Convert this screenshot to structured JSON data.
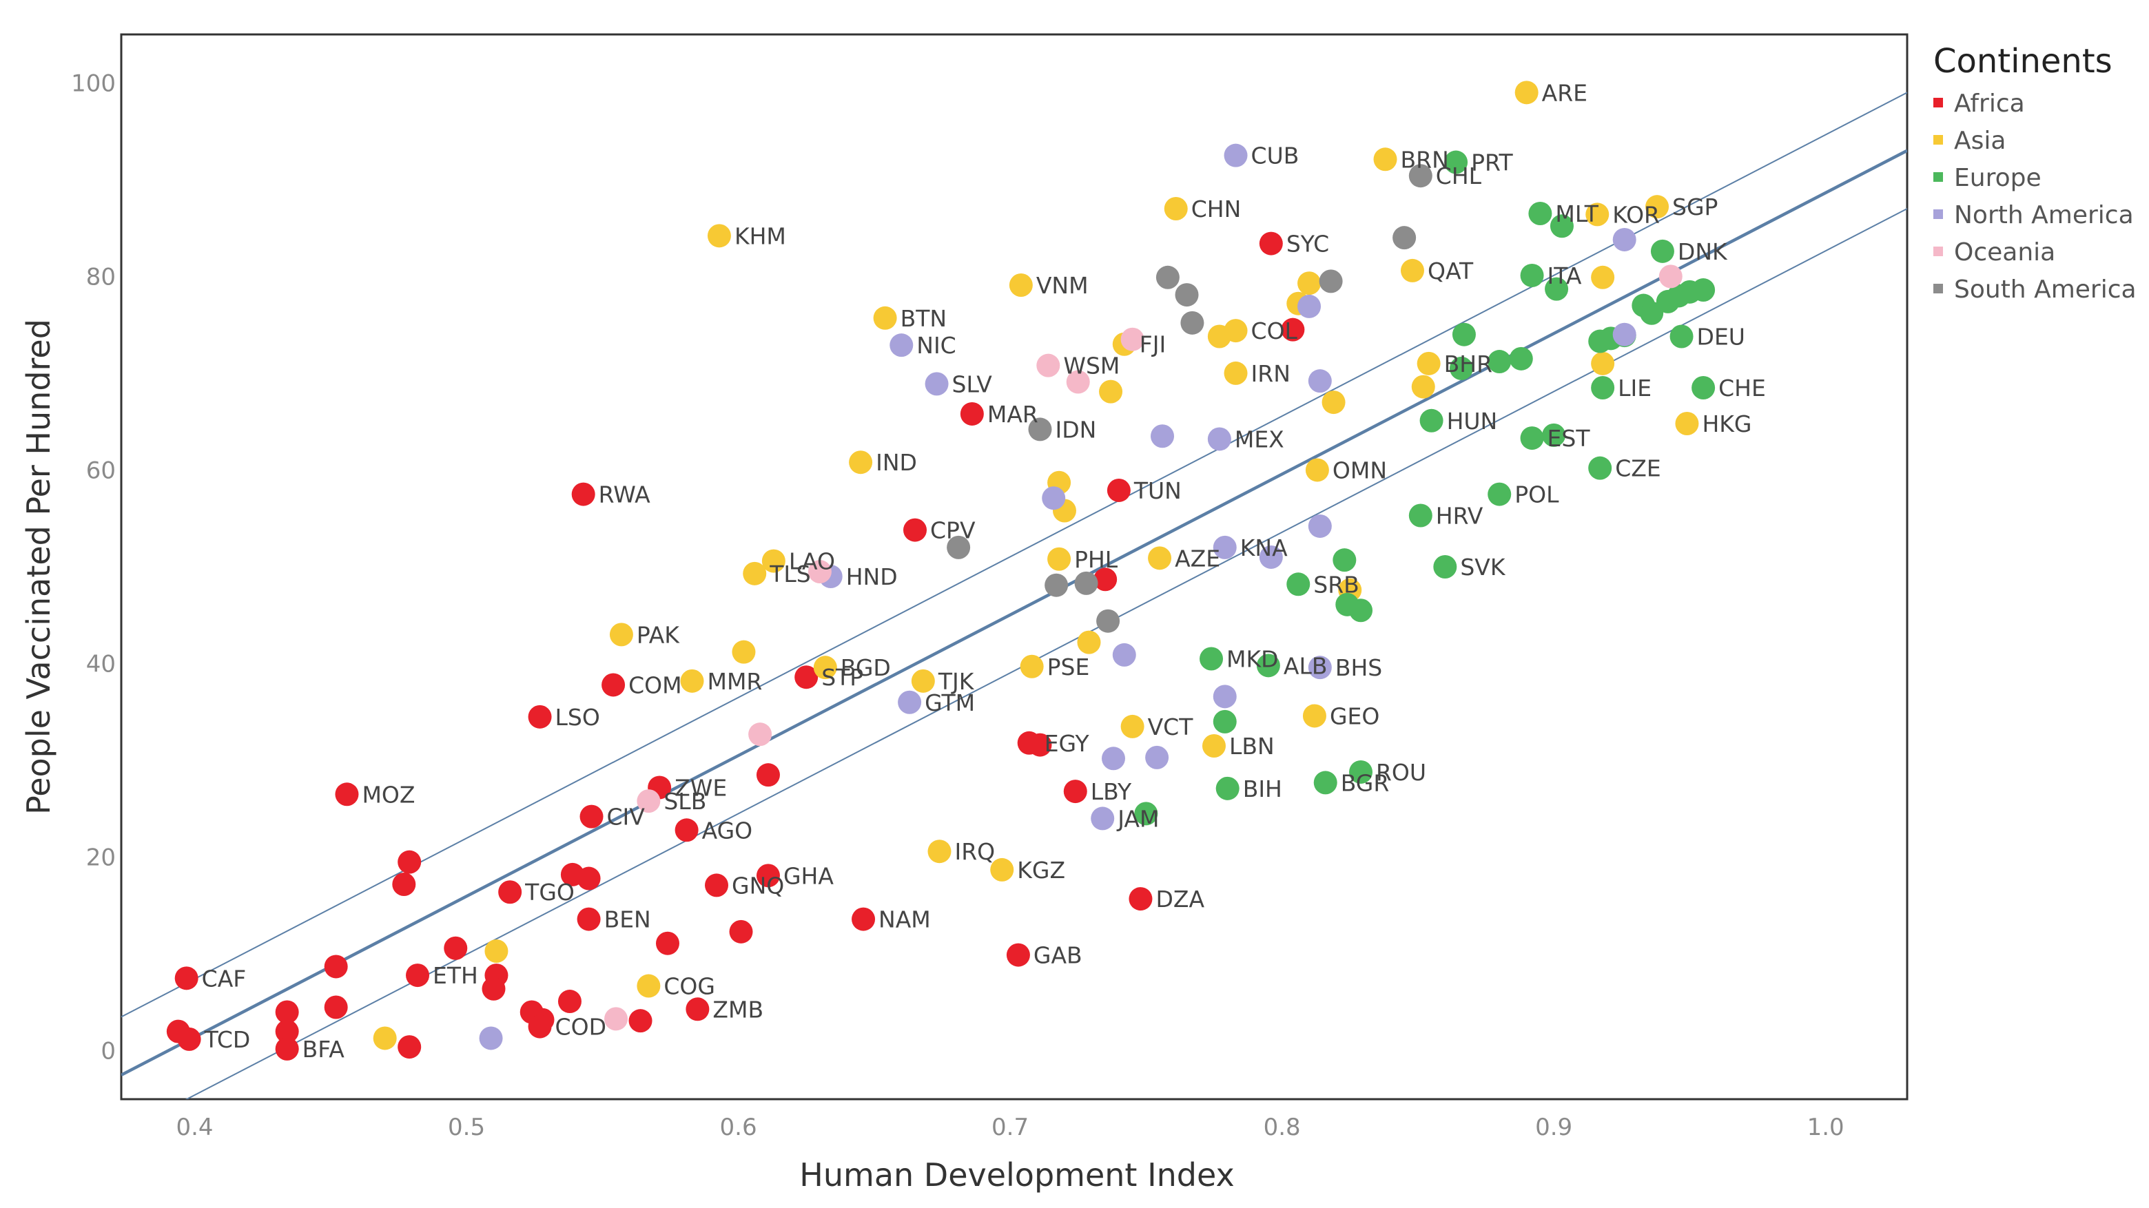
{
  "chart_data": {
    "type": "scatter",
    "title": "",
    "xlabel": "Human Development Index",
    "ylabel": "People Vaccinated Per Hundred",
    "xlim": [
      0.373,
      1.03
    ],
    "ylim": [
      -5,
      105
    ],
    "x_ticks": [
      "0.4",
      "0.5",
      "0.6",
      "0.7",
      "0.8",
      "0.9",
      "1.0"
    ],
    "x_tick_values": [
      0.4,
      0.5,
      0.6,
      0.7,
      0.8,
      0.9,
      1.0
    ],
    "y_ticks": [
      "0",
      "20",
      "40",
      "60",
      "80",
      "100"
    ],
    "y_tick_values": [
      0,
      20,
      40,
      60,
      80,
      100
    ],
    "grid": false,
    "legend": {
      "title": "Continents",
      "placement": "right",
      "entries": [
        {
          "name": "Africa",
          "color": "#e8202a"
        },
        {
          "name": "Asia",
          "color": "#f7c934"
        },
        {
          "name": "Europe",
          "color": "#4cb85c"
        },
        {
          "name": "North America",
          "color": "#a7a2da"
        },
        {
          "name": "Oceania",
          "color": "#f5b8c8"
        },
        {
          "name": "South America",
          "color": "#8c8c8c"
        }
      ]
    },
    "trend": {
      "color": "#5b7fa6",
      "line": [
        [
          0.373,
          -2.5
        ],
        [
          1.03,
          93.0
        ]
      ],
      "upper": [
        [
          0.373,
          3.5
        ],
        [
          1.03,
          99.0
        ]
      ],
      "lower": [
        [
          0.373,
          -8.5
        ],
        [
          1.03,
          87.0
        ]
      ]
    },
    "series": [
      {
        "name": "Africa",
        "color": "#e8202a",
        "points": [
          {
            "x": 0.397,
            "y": 7.5,
            "label": "CAF"
          },
          {
            "x": 0.394,
            "y": 2.0,
            "label": ""
          },
          {
            "x": 0.398,
            "y": 1.2,
            "label": "TCD"
          },
          {
            "x": 0.434,
            "y": 4.0,
            "label": ""
          },
          {
            "x": 0.434,
            "y": 2.0,
            "label": ""
          },
          {
            "x": 0.434,
            "y": 0.2,
            "label": "BFA"
          },
          {
            "x": 0.452,
            "y": 8.7,
            "label": ""
          },
          {
            "x": 0.452,
            "y": 4.5,
            "label": ""
          },
          {
            "x": 0.456,
            "y": 26.5,
            "label": "MOZ"
          },
          {
            "x": 0.479,
            "y": 19.5,
            "label": ""
          },
          {
            "x": 0.477,
            "y": 17.2,
            "label": ""
          },
          {
            "x": 0.482,
            "y": 7.8,
            "label": "ETH"
          },
          {
            "x": 0.479,
            "y": 0.4,
            "label": ""
          },
          {
            "x": 0.496,
            "y": 10.6,
            "label": ""
          },
          {
            "x": 0.511,
            "y": 7.8,
            "label": ""
          },
          {
            "x": 0.51,
            "y": 6.4,
            "label": ""
          },
          {
            "x": 0.516,
            "y": 16.4,
            "label": "TGO"
          },
          {
            "x": 0.524,
            "y": 4.0,
            "label": ""
          },
          {
            "x": 0.528,
            "y": 3.2,
            "label": ""
          },
          {
            "x": 0.527,
            "y": 2.5,
            "label": "COD"
          },
          {
            "x": 0.527,
            "y": 34.5,
            "label": "LSO"
          },
          {
            "x": 0.539,
            "y": 18.2,
            "label": ""
          },
          {
            "x": 0.545,
            "y": 17.8,
            "label": ""
          },
          {
            "x": 0.543,
            "y": 57.5,
            "label": "RWA"
          },
          {
            "x": 0.546,
            "y": 24.2,
            "label": "CIV"
          },
          {
            "x": 0.545,
            "y": 13.6,
            "label": "BEN"
          },
          {
            "x": 0.538,
            "y": 5.1,
            "label": ""
          },
          {
            "x": 0.554,
            "y": 37.8,
            "label": "COM"
          },
          {
            "x": 0.564,
            "y": 3.1,
            "label": ""
          },
          {
            "x": 0.571,
            "y": 27.2,
            "label": "ZWE"
          },
          {
            "x": 0.574,
            "y": 11.1,
            "label": ""
          },
          {
            "x": 0.581,
            "y": 22.8,
            "label": "AGO"
          },
          {
            "x": 0.585,
            "y": 4.3,
            "label": "ZMB"
          },
          {
            "x": 0.592,
            "y": 17.1,
            "label": "GNQ"
          },
          {
            "x": 0.601,
            "y": 12.3,
            "label": ""
          },
          {
            "x": 0.611,
            "y": 28.5,
            "label": ""
          },
          {
            "x": 0.611,
            "y": 18.1,
            "label": "GHA"
          },
          {
            "x": 0.625,
            "y": 38.6,
            "label": "STP"
          },
          {
            "x": 0.646,
            "y": 13.6,
            "label": "NAM"
          },
          {
            "x": 0.665,
            "y": 53.8,
            "label": "CPV"
          },
          {
            "x": 0.686,
            "y": 65.8,
            "label": "MAR"
          },
          {
            "x": 0.703,
            "y": 9.9,
            "label": "GAB"
          },
          {
            "x": 0.707,
            "y": 31.8,
            "label": "EGY"
          },
          {
            "x": 0.711,
            "y": 31.6,
            "label": ""
          },
          {
            "x": 0.724,
            "y": 26.8,
            "label": "LBY"
          },
          {
            "x": 0.74,
            "y": 57.9,
            "label": "TUN"
          },
          {
            "x": 0.735,
            "y": 48.7,
            "label": ""
          },
          {
            "x": 0.748,
            "y": 15.7,
            "label": "DZA"
          },
          {
            "x": 0.796,
            "y": 83.4,
            "label": "SYC"
          },
          {
            "x": 0.804,
            "y": 74.5,
            "label": ""
          }
        ]
      },
      {
        "name": "Asia",
        "color": "#f7c934",
        "points": [
          {
            "x": 0.47,
            "y": 1.3,
            "label": ""
          },
          {
            "x": 0.511,
            "y": 10.3,
            "label": ""
          },
          {
            "x": 0.557,
            "y": 43.0,
            "label": "PAK"
          },
          {
            "x": 0.567,
            "y": 6.7,
            "label": "COG"
          },
          {
            "x": 0.583,
            "y": 38.2,
            "label": "MMR"
          },
          {
            "x": 0.593,
            "y": 84.2,
            "label": "KHM"
          },
          {
            "x": 0.602,
            "y": 41.2,
            "label": ""
          },
          {
            "x": 0.606,
            "y": 49.3,
            "label": "TLS"
          },
          {
            "x": 0.613,
            "y": 50.6,
            "label": "LAO"
          },
          {
            "x": 0.632,
            "y": 39.6,
            "label": "BGD"
          },
          {
            "x": 0.645,
            "y": 60.8,
            "label": "IND"
          },
          {
            "x": 0.654,
            "y": 75.7,
            "label": "BTN"
          },
          {
            "x": 0.668,
            "y": 38.2,
            "label": "TJK"
          },
          {
            "x": 0.674,
            "y": 20.6,
            "label": "IRQ"
          },
          {
            "x": 0.697,
            "y": 18.7,
            "label": "KGZ"
          },
          {
            "x": 0.704,
            "y": 79.1,
            "label": "VNM"
          },
          {
            "x": 0.708,
            "y": 39.7,
            "label": "PSE"
          },
          {
            "x": 0.718,
            "y": 58.7,
            "label": ""
          },
          {
            "x": 0.72,
            "y": 55.8,
            "label": ""
          },
          {
            "x": 0.718,
            "y": 50.8,
            "label": "PHL"
          },
          {
            "x": 0.729,
            "y": 42.2,
            "label": ""
          },
          {
            "x": 0.737,
            "y": 68.1,
            "label": ""
          },
          {
            "x": 0.742,
            "y": 73.0,
            "label": "FJI"
          },
          {
            "x": 0.745,
            "y": 33.5,
            "label": "VCT"
          },
          {
            "x": 0.755,
            "y": 50.9,
            "label": "AZE"
          },
          {
            "x": 0.761,
            "y": 87.0,
            "label": "CHN"
          },
          {
            "x": 0.775,
            "y": 31.5,
            "label": "LBN"
          },
          {
            "x": 0.777,
            "y": 73.8,
            "label": ""
          },
          {
            "x": 0.783,
            "y": 74.4,
            "label": "COL"
          },
          {
            "x": 0.783,
            "y": 70.0,
            "label": "IRN"
          },
          {
            "x": 0.806,
            "y": 77.2,
            "label": ""
          },
          {
            "x": 0.81,
            "y": 79.3,
            "label": ""
          },
          {
            "x": 0.812,
            "y": 34.6,
            "label": "GEO"
          },
          {
            "x": 0.813,
            "y": 60.0,
            "label": "OMN"
          },
          {
            "x": 0.819,
            "y": 67.0,
            "label": ""
          },
          {
            "x": 0.825,
            "y": 47.6,
            "label": ""
          },
          {
            "x": 0.838,
            "y": 92.1,
            "label": "BRN"
          },
          {
            "x": 0.848,
            "y": 80.6,
            "label": "QAT"
          },
          {
            "x": 0.852,
            "y": 68.6,
            "label": ""
          },
          {
            "x": 0.854,
            "y": 71.0,
            "label": "BHR"
          },
          {
            "x": 0.89,
            "y": 99.0,
            "label": "ARE"
          },
          {
            "x": 0.916,
            "y": 86.4,
            "label": "KOR"
          },
          {
            "x": 0.918,
            "y": 79.9,
            "label": ""
          },
          {
            "x": 0.918,
            "y": 71.0,
            "label": ""
          },
          {
            "x": 0.938,
            "y": 87.2,
            "label": "SGP"
          },
          {
            "x": 0.949,
            "y": 64.8,
            "label": "HKG"
          }
        ]
      },
      {
        "name": "Europe",
        "color": "#4cb85c",
        "points": [
          {
            "x": 0.864,
            "y": 91.8,
            "label": "PRT"
          },
          {
            "x": 0.895,
            "y": 86.5,
            "label": "MLT"
          },
          {
            "x": 0.903,
            "y": 85.2,
            "label": ""
          },
          {
            "x": 0.892,
            "y": 80.1,
            "label": "ITA"
          },
          {
            "x": 0.901,
            "y": 78.7,
            "label": ""
          },
          {
            "x": 0.94,
            "y": 82.6,
            "label": "DNK"
          },
          {
            "x": 0.933,
            "y": 77.0,
            "label": ""
          },
          {
            "x": 0.936,
            "y": 76.2,
            "label": ""
          },
          {
            "x": 0.942,
            "y": 77.4,
            "label": ""
          },
          {
            "x": 0.946,
            "y": 78.0,
            "label": ""
          },
          {
            "x": 0.95,
            "y": 78.4,
            "label": ""
          },
          {
            "x": 0.955,
            "y": 78.6,
            "label": ""
          },
          {
            "x": 0.947,
            "y": 73.8,
            "label": "DEU"
          },
          {
            "x": 0.955,
            "y": 68.5,
            "label": "CHE"
          },
          {
            "x": 0.917,
            "y": 73.3,
            "label": ""
          },
          {
            "x": 0.921,
            "y": 73.6,
            "label": ""
          },
          {
            "x": 0.926,
            "y": 73.9,
            "label": ""
          },
          {
            "x": 0.918,
            "y": 68.5,
            "label": "LIE"
          },
          {
            "x": 0.917,
            "y": 60.2,
            "label": "CZE"
          },
          {
            "x": 0.888,
            "y": 71.5,
            "label": ""
          },
          {
            "x": 0.88,
            "y": 71.2,
            "label": ""
          },
          {
            "x": 0.867,
            "y": 74.0,
            "label": ""
          },
          {
            "x": 0.866,
            "y": 70.5,
            "label": ""
          },
          {
            "x": 0.855,
            "y": 65.1,
            "label": "HUN"
          },
          {
            "x": 0.892,
            "y": 63.3,
            "label": "EST"
          },
          {
            "x": 0.9,
            "y": 63.6,
            "label": ""
          },
          {
            "x": 0.88,
            "y": 57.5,
            "label": "POL"
          },
          {
            "x": 0.851,
            "y": 55.3,
            "label": "HRV"
          },
          {
            "x": 0.86,
            "y": 50.0,
            "label": "SVK"
          },
          {
            "x": 0.823,
            "y": 50.7,
            "label": ""
          },
          {
            "x": 0.806,
            "y": 48.2,
            "label": "SRB"
          },
          {
            "x": 0.824,
            "y": 46.1,
            "label": ""
          },
          {
            "x": 0.829,
            "y": 45.5,
            "label": ""
          },
          {
            "x": 0.774,
            "y": 40.5,
            "label": "MKD"
          },
          {
            "x": 0.795,
            "y": 39.8,
            "label": "ALB"
          },
          {
            "x": 0.779,
            "y": 34.0,
            "label": ""
          },
          {
            "x": 0.829,
            "y": 28.8,
            "label": "ROU"
          },
          {
            "x": 0.816,
            "y": 27.7,
            "label": "BGR"
          },
          {
            "x": 0.78,
            "y": 27.1,
            "label": "BIH"
          },
          {
            "x": 0.75,
            "y": 24.5,
            "label": ""
          }
        ]
      },
      {
        "name": "North America",
        "color": "#a7a2da",
        "points": [
          {
            "x": 0.509,
            "y": 1.3,
            "label": ""
          },
          {
            "x": 0.634,
            "y": 49.0,
            "label": "HND"
          },
          {
            "x": 0.66,
            "y": 72.9,
            "label": "NIC"
          },
          {
            "x": 0.673,
            "y": 68.9,
            "label": "SLV"
          },
          {
            "x": 0.663,
            "y": 36.0,
            "label": "GTM"
          },
          {
            "x": 0.716,
            "y": 57.1,
            "label": ""
          },
          {
            "x": 0.734,
            "y": 24.0,
            "label": "JAM"
          },
          {
            "x": 0.738,
            "y": 30.2,
            "label": ""
          },
          {
            "x": 0.742,
            "y": 40.9,
            "label": ""
          },
          {
            "x": 0.754,
            "y": 30.3,
            "label": ""
          },
          {
            "x": 0.756,
            "y": 63.5,
            "label": ""
          },
          {
            "x": 0.777,
            "y": 63.2,
            "label": "MEX"
          },
          {
            "x": 0.779,
            "y": 52.0,
            "label": "KNA"
          },
          {
            "x": 0.779,
            "y": 36.6,
            "label": ""
          },
          {
            "x": 0.783,
            "y": 92.5,
            "label": "CUB"
          },
          {
            "x": 0.796,
            "y": 51.0,
            "label": ""
          },
          {
            "x": 0.81,
            "y": 76.9,
            "label": ""
          },
          {
            "x": 0.814,
            "y": 69.2,
            "label": ""
          },
          {
            "x": 0.814,
            "y": 54.2,
            "label": ""
          },
          {
            "x": 0.814,
            "y": 39.6,
            "label": "BHS"
          },
          {
            "x": 0.926,
            "y": 83.8,
            "label": ""
          },
          {
            "x": 0.926,
            "y": 74.0,
            "label": ""
          }
        ]
      },
      {
        "name": "Oceania",
        "color": "#f5b8c8",
        "points": [
          {
            "x": 0.555,
            "y": 3.3,
            "label": ""
          },
          {
            "x": 0.567,
            "y": 25.8,
            "label": "SLB"
          },
          {
            "x": 0.608,
            "y": 32.7,
            "label": ""
          },
          {
            "x": 0.63,
            "y": 49.5,
            "label": ""
          },
          {
            "x": 0.714,
            "y": 70.8,
            "label": "WSM"
          },
          {
            "x": 0.725,
            "y": 69.1,
            "label": ""
          },
          {
            "x": 0.745,
            "y": 73.5,
            "label": ""
          },
          {
            "x": 0.943,
            "y": 80.0,
            "label": ""
          }
        ]
      },
      {
        "name": "South America",
        "color": "#8c8c8c",
        "points": [
          {
            "x": 0.681,
            "y": 52.0,
            "label": ""
          },
          {
            "x": 0.711,
            "y": 64.2,
            "label": "IDN"
          },
          {
            "x": 0.717,
            "y": 48.1,
            "label": ""
          },
          {
            "x": 0.728,
            "y": 48.3,
            "label": ""
          },
          {
            "x": 0.736,
            "y": 44.4,
            "label": ""
          },
          {
            "x": 0.758,
            "y": 79.9,
            "label": ""
          },
          {
            "x": 0.765,
            "y": 78.1,
            "label": ""
          },
          {
            "x": 0.767,
            "y": 75.2,
            "label": ""
          },
          {
            "x": 0.818,
            "y": 79.5,
            "label": ""
          },
          {
            "x": 0.845,
            "y": 84.0,
            "label": ""
          },
          {
            "x": 0.851,
            "y": 90.4,
            "label": "CHL"
          }
        ]
      }
    ]
  }
}
